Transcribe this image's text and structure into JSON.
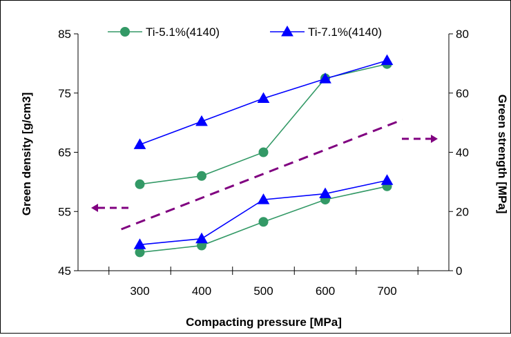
{
  "chart_data": {
    "type": "line",
    "title": "",
    "xlabel": "Compacting pressure [MPa]",
    "ylabel_left": "Green density [g/cm3]",
    "ylabel_right": "Green strength [MPa]",
    "categories": [
      "300",
      "400",
      "500",
      "600",
      "700"
    ],
    "x": [
      300,
      400,
      500,
      600,
      700
    ],
    "xlim": [
      200,
      800
    ],
    "ylim_left": [
      45,
      85
    ],
    "yticks_left": [
      "45",
      "55",
      "65",
      "75",
      "85"
    ],
    "ylim_right": [
      0,
      80
    ],
    "yticks_right": [
      "0",
      "20",
      "40",
      "60",
      "80"
    ],
    "grid": false,
    "legend_position": "top",
    "series": [
      {
        "name": "Ti-5.1%(4140)",
        "axis": "left",
        "metric": "density",
        "color": "#339966",
        "marker": "circle",
        "values": [
          59.6,
          61.0,
          65.0,
          77.5,
          79.9
        ]
      },
      {
        "name": "Ti-7.1%(4140)",
        "axis": "left",
        "metric": "density",
        "color": "#0000ff",
        "marker": "triangle",
        "values": [
          66.3,
          70.2,
          74.1,
          77.4,
          80.5
        ]
      },
      {
        "name": "Ti-5.1%(4140)",
        "axis": "right",
        "metric": "strength",
        "color": "#339966",
        "marker": "circle",
        "values": [
          6.2,
          8.5,
          16.5,
          24.0,
          28.5
        ]
      },
      {
        "name": "Ti-7.1%(4140)",
        "axis": "right",
        "metric": "strength",
        "color": "#0000ff",
        "marker": "triangle",
        "values": [
          8.8,
          10.8,
          24.0,
          26.0,
          30.5
        ]
      }
    ],
    "annotations": [
      {
        "type": "dashed-trend-line",
        "color": "#800080",
        "from_x": 270,
        "from_right": 14,
        "to_x": 725,
        "to_right": 51
      },
      {
        "type": "arrow",
        "direction": "left",
        "color": "#800080",
        "points_to": "left-axis"
      },
      {
        "type": "arrow",
        "direction": "right",
        "color": "#800080",
        "points_to": "right-axis"
      }
    ]
  }
}
